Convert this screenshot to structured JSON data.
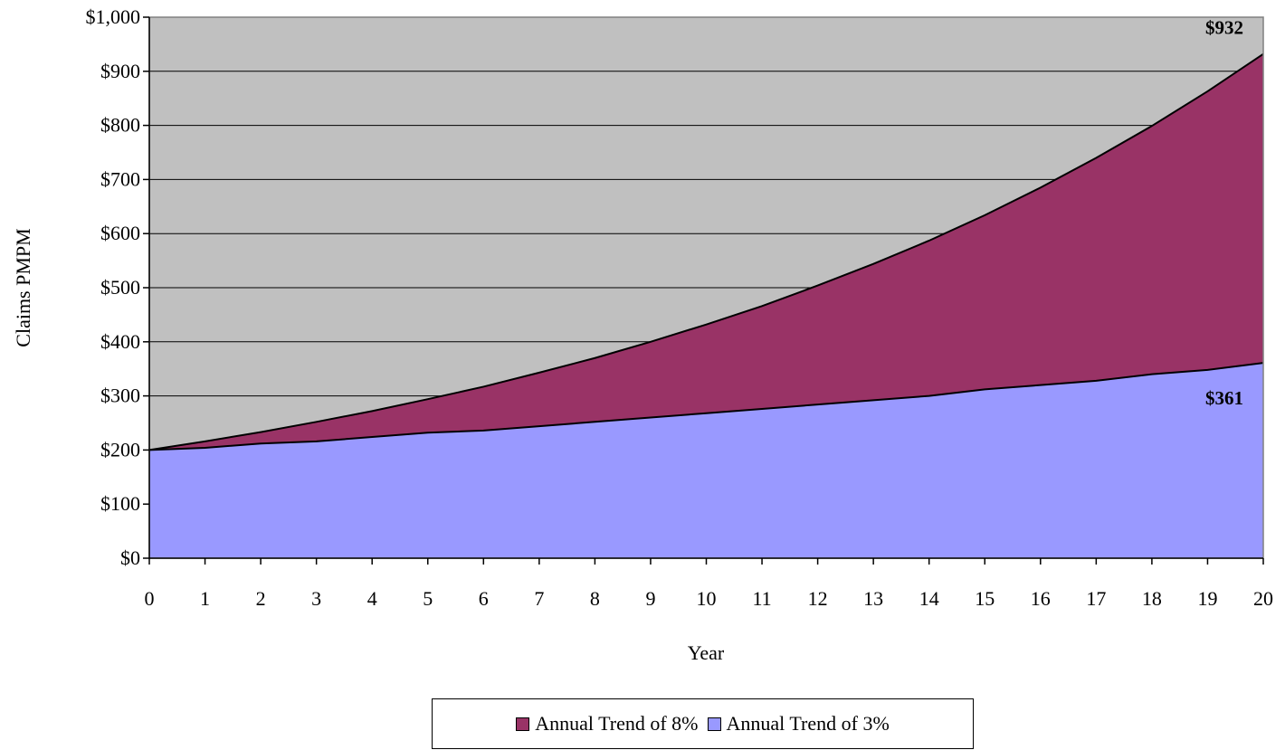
{
  "chart_data": {
    "type": "area",
    "title": "",
    "xlabel": "Year",
    "ylabel": "Claims PMPM",
    "x": [
      0,
      1,
      2,
      3,
      4,
      5,
      6,
      7,
      8,
      9,
      10,
      11,
      12,
      13,
      14,
      15,
      16,
      17,
      18,
      19,
      20
    ],
    "x_tick_labels": [
      "0",
      "1",
      "2",
      "3",
      "4",
      "5",
      "6",
      "7",
      "8",
      "9",
      "10",
      "11",
      "12",
      "13",
      "14",
      "15",
      "16",
      "17",
      "18",
      "19",
      "20"
    ],
    "ylim": [
      0,
      1000
    ],
    "y_tick_values": [
      0,
      100,
      200,
      300,
      400,
      500,
      600,
      700,
      800,
      900,
      1000
    ],
    "y_tick_labels": [
      "$0",
      "$100",
      "$200",
      "$300",
      "$400",
      "$500",
      "$600",
      "$700",
      "$800",
      "$900",
      "$1,000"
    ],
    "grid": "horizontal",
    "plot_background": "#c0c0c0",
    "legend_position": "bottom",
    "series": [
      {
        "name": "Annual Trend of 8%",
        "color": "#993366",
        "values": [
          200,
          216,
          233,
          252,
          272,
          294,
          317,
          343,
          370,
          400,
          432,
          466,
          504,
          544,
          587,
          634,
          685,
          740,
          799,
          863,
          932
        ]
      },
      {
        "name": "Annual Trend of 3%",
        "color": "#9999ff",
        "values": [
          200,
          204,
          212,
          216,
          224,
          232,
          236,
          244,
          252,
          260,
          268,
          276,
          284,
          292,
          300,
          312,
          320,
          328,
          340,
          348,
          361
        ]
      }
    ],
    "annotations": [
      {
        "text": "$932",
        "x": 20,
        "y": 932
      },
      {
        "text": "$361",
        "x": 20,
        "y": 361
      }
    ]
  }
}
